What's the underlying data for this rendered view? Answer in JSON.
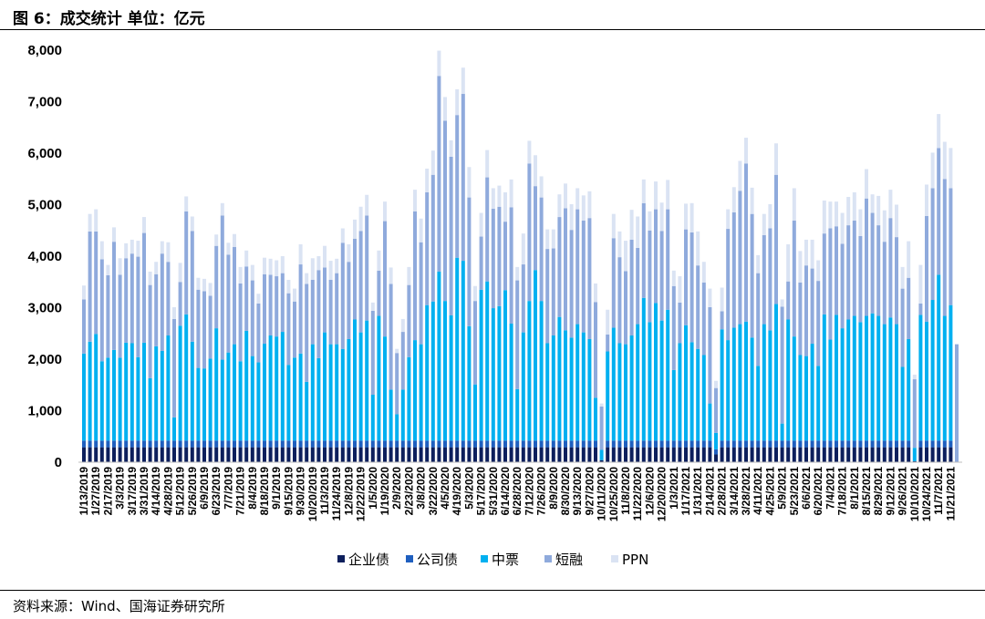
{
  "header": {
    "title": "图 6：成交统计 单位：亿元"
  },
  "footer": {
    "source": "资料来源：Wind、国海证券研究所"
  },
  "colors": {
    "企业债": "#0d1f5c",
    "公司债": "#1f5fbf",
    "中票": "#00b0f0",
    "短融": "#8faadc",
    "PPN": "#dae3f3"
  },
  "chart_data": {
    "type": "bar",
    "stacked": true,
    "title": "成交统计",
    "unit": "亿元",
    "ylim": [
      0,
      8000
    ],
    "yticks": [
      "0",
      "1,000",
      "2,000",
      "3,000",
      "4,000",
      "5,000",
      "6,000",
      "7,000",
      "8,000"
    ],
    "legend_position": "bottom",
    "x_tick_every": 2,
    "x_tick_labels": [
      "1/13/2019",
      "1/27/2019",
      "2/17/2019",
      "3/3/2019",
      "3/17/2019",
      "3/31/2019",
      "4/14/2019",
      "4/28/2019",
      "5/12/2019",
      "5/26/2019",
      "6/9/2019",
      "6/23/2019",
      "7/7/2019",
      "7/21/2019",
      "8/4/2019",
      "8/18/2019",
      "9/1/2019",
      "9/15/2019",
      "9/30/2019",
      "10/20/2019",
      "11/3/2019",
      "11/24/2019",
      "12/8/2019",
      "12/22/2019",
      "1/5/2020",
      "1/19/2020",
      "2/9/2020",
      "2/23/2020",
      "3/8/2020",
      "3/22/2020",
      "4/5/2020",
      "4/19/2020",
      "5/3/2020",
      "5/17/2020",
      "5/31/2020",
      "6/14/2020",
      "6/28/2020",
      "7/12/2020",
      "7/26/2020",
      "8/9/2020",
      "8/30/2020",
      "9/13/2020",
      "9/27/2020",
      "10/11/2020",
      "10/25/2020",
      "11/8/2020",
      "11/22/2020",
      "12/6/2020",
      "12/20/2020",
      "1/3/2021",
      "1/17/2021",
      "1/31/2021",
      "2/14/2021",
      "2/28/2021",
      "3/14/2021",
      "3/28/2021",
      "4/11/2021",
      "4/25/2021",
      "5/9/2021",
      "5/23/2021",
      "6/6/2021",
      "6/20/2021",
      "7/4/2021",
      "7/18/2021",
      "8/1/2021",
      "8/15/2021",
      "8/29/2021",
      "9/12/2021",
      "9/26/2021",
      "10/10/2021",
      "10/24/2021",
      "11/7/2021",
      "11/21/2021"
    ],
    "series": [
      {
        "name": "企业债",
        "values": [
          290,
          290,
          290,
          290,
          290,
          290,
          290,
          290,
          290,
          290,
          290,
          290,
          290,
          290,
          290,
          290,
          290,
          290,
          290,
          290,
          290,
          290,
          290,
          290,
          290,
          290,
          290,
          290,
          290,
          290,
          290,
          290,
          290,
          290,
          290,
          290,
          290,
          290,
          290,
          290,
          290,
          290,
          290,
          290,
          290,
          290,
          290,
          290,
          290,
          290,
          290,
          290,
          290,
          290,
          290,
          290,
          290,
          290,
          290,
          290,
          290,
          290,
          290,
          290,
          290,
          290,
          290,
          290,
          290,
          290,
          290,
          290,
          290,
          290,
          290,
          290,
          290,
          290,
          290,
          290,
          290,
          290,
          290,
          290,
          290,
          290,
          40,
          290,
          290,
          290,
          290,
          290,
          290,
          290,
          290,
          290,
          290,
          290,
          290,
          290,
          290,
          290,
          290,
          290,
          290,
          150,
          290,
          290,
          290,
          290,
          290,
          290,
          290,
          290,
          290,
          290,
          290,
          290,
          290,
          290,
          290,
          290,
          290,
          290,
          290,
          290,
          290,
          290,
          290,
          290,
          290,
          290,
          290,
          290,
          290,
          290,
          290,
          290,
          20,
          290,
          290,
          290,
          290,
          290,
          290,
          0
        ]
      },
      {
        "name": "公司债",
        "values": [
          130,
          130,
          130,
          130,
          130,
          130,
          130,
          130,
          130,
          130,
          130,
          130,
          130,
          130,
          130,
          130,
          130,
          130,
          130,
          130,
          130,
          130,
          130,
          130,
          130,
          130,
          130,
          130,
          130,
          130,
          130,
          130,
          130,
          130,
          130,
          130,
          130,
          130,
          130,
          130,
          130,
          130,
          130,
          130,
          130,
          130,
          130,
          130,
          130,
          130,
          130,
          130,
          130,
          130,
          130,
          130,
          130,
          130,
          130,
          130,
          130,
          130,
          130,
          130,
          130,
          130,
          130,
          130,
          130,
          130,
          130,
          130,
          130,
          130,
          130,
          130,
          130,
          130,
          130,
          130,
          130,
          130,
          130,
          130,
          130,
          130,
          0,
          130,
          130,
          130,
          130,
          130,
          130,
          130,
          130,
          130,
          130,
          130,
          130,
          130,
          130,
          130,
          130,
          130,
          130,
          100,
          130,
          130,
          130,
          130,
          130,
          130,
          130,
          130,
          130,
          130,
          130,
          130,
          130,
          130,
          130,
          130,
          130,
          130,
          130,
          130,
          130,
          130,
          130,
          130,
          130,
          130,
          130,
          130,
          130,
          130,
          130,
          130,
          0,
          130,
          130,
          130,
          130,
          130,
          130,
          0
        ]
      },
      {
        "name": "中票",
        "values": [
          1690,
          1920,
          2070,
          1540,
          1610,
          1760,
          1610,
          1900,
          1890,
          1620,
          1900,
          1210,
          1830,
          1740,
          2040,
          450,
          2230,
          2450,
          1920,
          1410,
          1400,
          1590,
          2180,
          1570,
          1710,
          1870,
          1540,
          2130,
          1640,
          1520,
          1880,
          2040,
          2020,
          2110,
          1470,
          1610,
          1690,
          1140,
          1870,
          1600,
          2100,
          1870,
          1870,
          1780,
          1970,
          2350,
          2100,
          2330,
          890,
          2420,
          2020,
          990,
          510,
          990,
          1620,
          1950,
          1870,
          2630,
          2700,
          3280,
          2710,
          2430,
          3550,
          3490,
          2220,
          1090,
          2930,
          3090,
          2570,
          2610,
          2920,
          2270,
          1000,
          2100,
          2710,
          3310,
          2710,
          1890,
          2040,
          2400,
          2140,
          2000,
          2260,
          2100,
          1970,
          830,
          200,
          1730,
          2190,
          1890,
          1870,
          2040,
          2260,
          2770,
          2300,
          2670,
          2330,
          2540,
          1370,
          1890,
          2240,
          1910,
          1780,
          1660,
          720,
          320,
          2160,
          1950,
          2190,
          2260,
          2310,
          2000,
          1450,
          2260,
          2140,
          2650,
          330,
          2350,
          2020,
          1660,
          1640,
          1880,
          1450,
          2450,
          1960,
          2440,
          2180,
          2350,
          2420,
          2300,
          2420,
          2470,
          2420,
          2260,
          2390,
          2260,
          1430,
          1970,
          260,
          2440,
          2310,
          2730,
          3220,
          2420,
          2630,
          0
        ]
      },
      {
        "name": "短融",
        "values": [
          1050,
          2140,
          1990,
          1980,
          1600,
          2100,
          1610,
          1640,
          1740,
          1950,
          2130,
          1810,
          1400,
          1890,
          1430,
          1910,
          850,
          2000,
          2150,
          1520,
          1500,
          1220,
          1600,
          2800,
          1900,
          1890,
          1510,
          1250,
          1470,
          1140,
          1350,
          1180,
          1170,
          1140,
          1390,
          1090,
          1730,
          1900,
          1250,
          1710,
          1260,
          1250,
          1380,
          2060,
          1500,
          1570,
          1970,
          2040,
          1630,
          880,
          2240,
          2050,
          1190,
          1120,
          1400,
          2500,
          1980,
          2190,
          2460,
          3800,
          3500,
          3080,
          2770,
          3240,
          2500,
          1620,
          1030,
          2020,
          1930,
          1930,
          1330,
          2260,
          2110,
          1320,
          2670,
          1630,
          2010,
          1830,
          1690,
          1940,
          2370,
          2090,
          2230,
          2170,
          2350,
          1860,
          840,
          330,
          1740,
          1670,
          1420,
          1860,
          1480,
          1840,
          1780,
          1820,
          1740,
          1950,
          1630,
          790,
          1860,
          2130,
          1620,
          1410,
          1870,
          870,
          350,
          2160,
          2240,
          2590,
          3070,
          2400,
          1800,
          1730,
          1980,
          2510,
          2270,
          740,
          2250,
          1410,
          1760,
          1460,
          1650,
          1570,
          2160,
          1720,
          1640,
          1830,
          1850,
          1670,
          2280,
          1950,
          1760,
          1600,
          1930,
          1690,
          1520,
          1190,
          1330,
          220,
          2050,
          2170,
          2460,
          2660,
          2270,
          2290
        ]
      },
      {
        "name": "PPN",
        "values": [
          270,
          340,
          430,
          350,
          200,
          280,
          320,
          290,
          270,
          310,
          310,
          260,
          240,
          240,
          380,
          230,
          370,
          290,
          280,
          230,
          240,
          250,
          220,
          240,
          230,
          250,
          320,
          310,
          300,
          190,
          320,
          310,
          310,
          330,
          260,
          250,
          390,
          210,
          420,
          270,
          420,
          370,
          280,
          280,
          340,
          370,
          470,
          400,
          160,
          390,
          380,
          320,
          80,
          250,
          350,
          420,
          460,
          460,
          470,
          490,
          460,
          320,
          500,
          510,
          590,
          290,
          460,
          530,
          400,
          410,
          570,
          540,
          260,
          600,
          440,
          600,
          410,
          380,
          370,
          440,
          480,
          500,
          410,
          490,
          520,
          360,
          60,
          480,
          470,
          500,
          590,
          580,
          610,
          460,
          370,
          540,
          550,
          570,
          300,
          510,
          500,
          570,
          660,
          400,
          360,
          140,
          460,
          380,
          490,
          580,
          500,
          510,
          350,
          410,
          470,
          610,
          140,
          720,
          630,
          610,
          500,
          560,
          400,
          640,
          520,
          480,
          600,
          550,
          550,
          520,
          570,
          360,
          570,
          610,
          550,
          630,
          420,
          710,
          90,
          750,
          610,
          690,
          660,
          720,
          780,
          0
        ]
      }
    ]
  }
}
